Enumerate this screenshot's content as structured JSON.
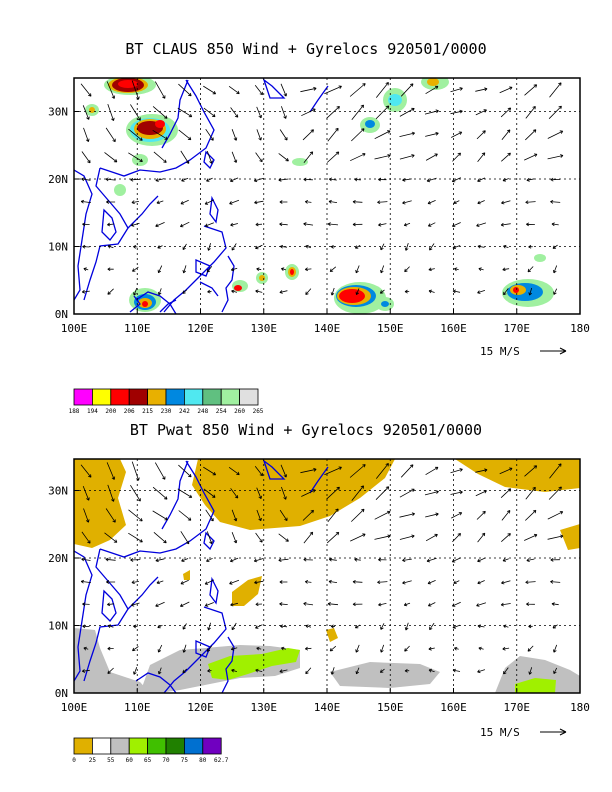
{
  "panels": [
    {
      "title": "BT CLAUS 850 Wind + Gyrelocs 920501/0000",
      "x_ticks": [
        "100E",
        "110E",
        "120E",
        "130E",
        "140E",
        "150E",
        "160E",
        "170E",
        "180"
      ],
      "y_ticks": [
        "0N",
        "10N",
        "20N",
        "30N"
      ],
      "ref_vector": "15 M/S",
      "colorbar_colors": [
        "#ff00ff",
        "#ffff00",
        "#ff0000",
        "#a00000",
        "#e8b000",
        "#0088e0",
        "#50e8f0",
        "#60c080",
        "#a0f0a0",
        "#e0e0e0"
      ],
      "colorbar_labels": [
        "188",
        "194",
        "200",
        "206",
        "215",
        "230",
        "242",
        "248",
        "254",
        "260",
        "265"
      ]
    },
    {
      "title": "BT Pwat 850 Wind + Gyrelocs 920501/0000",
      "x_ticks": [
        "100E",
        "110E",
        "120E",
        "130E",
        "140E",
        "150E",
        "160E",
        "170E",
        "180"
      ],
      "y_ticks": [
        "0N",
        "10N",
        "20N",
        "30N"
      ],
      "ref_vector": "15 M/S",
      "colorbar_colors": [
        "#e0b000",
        "#ffffff",
        "#c0c0c0",
        "#a0f000",
        "#40c000",
        "#208000",
        "#0070d0",
        "#7000c0"
      ],
      "colorbar_labels": [
        "0",
        "25",
        "55",
        "60",
        "65",
        "70",
        "75",
        "80",
        "62.7"
      ]
    }
  ]
}
